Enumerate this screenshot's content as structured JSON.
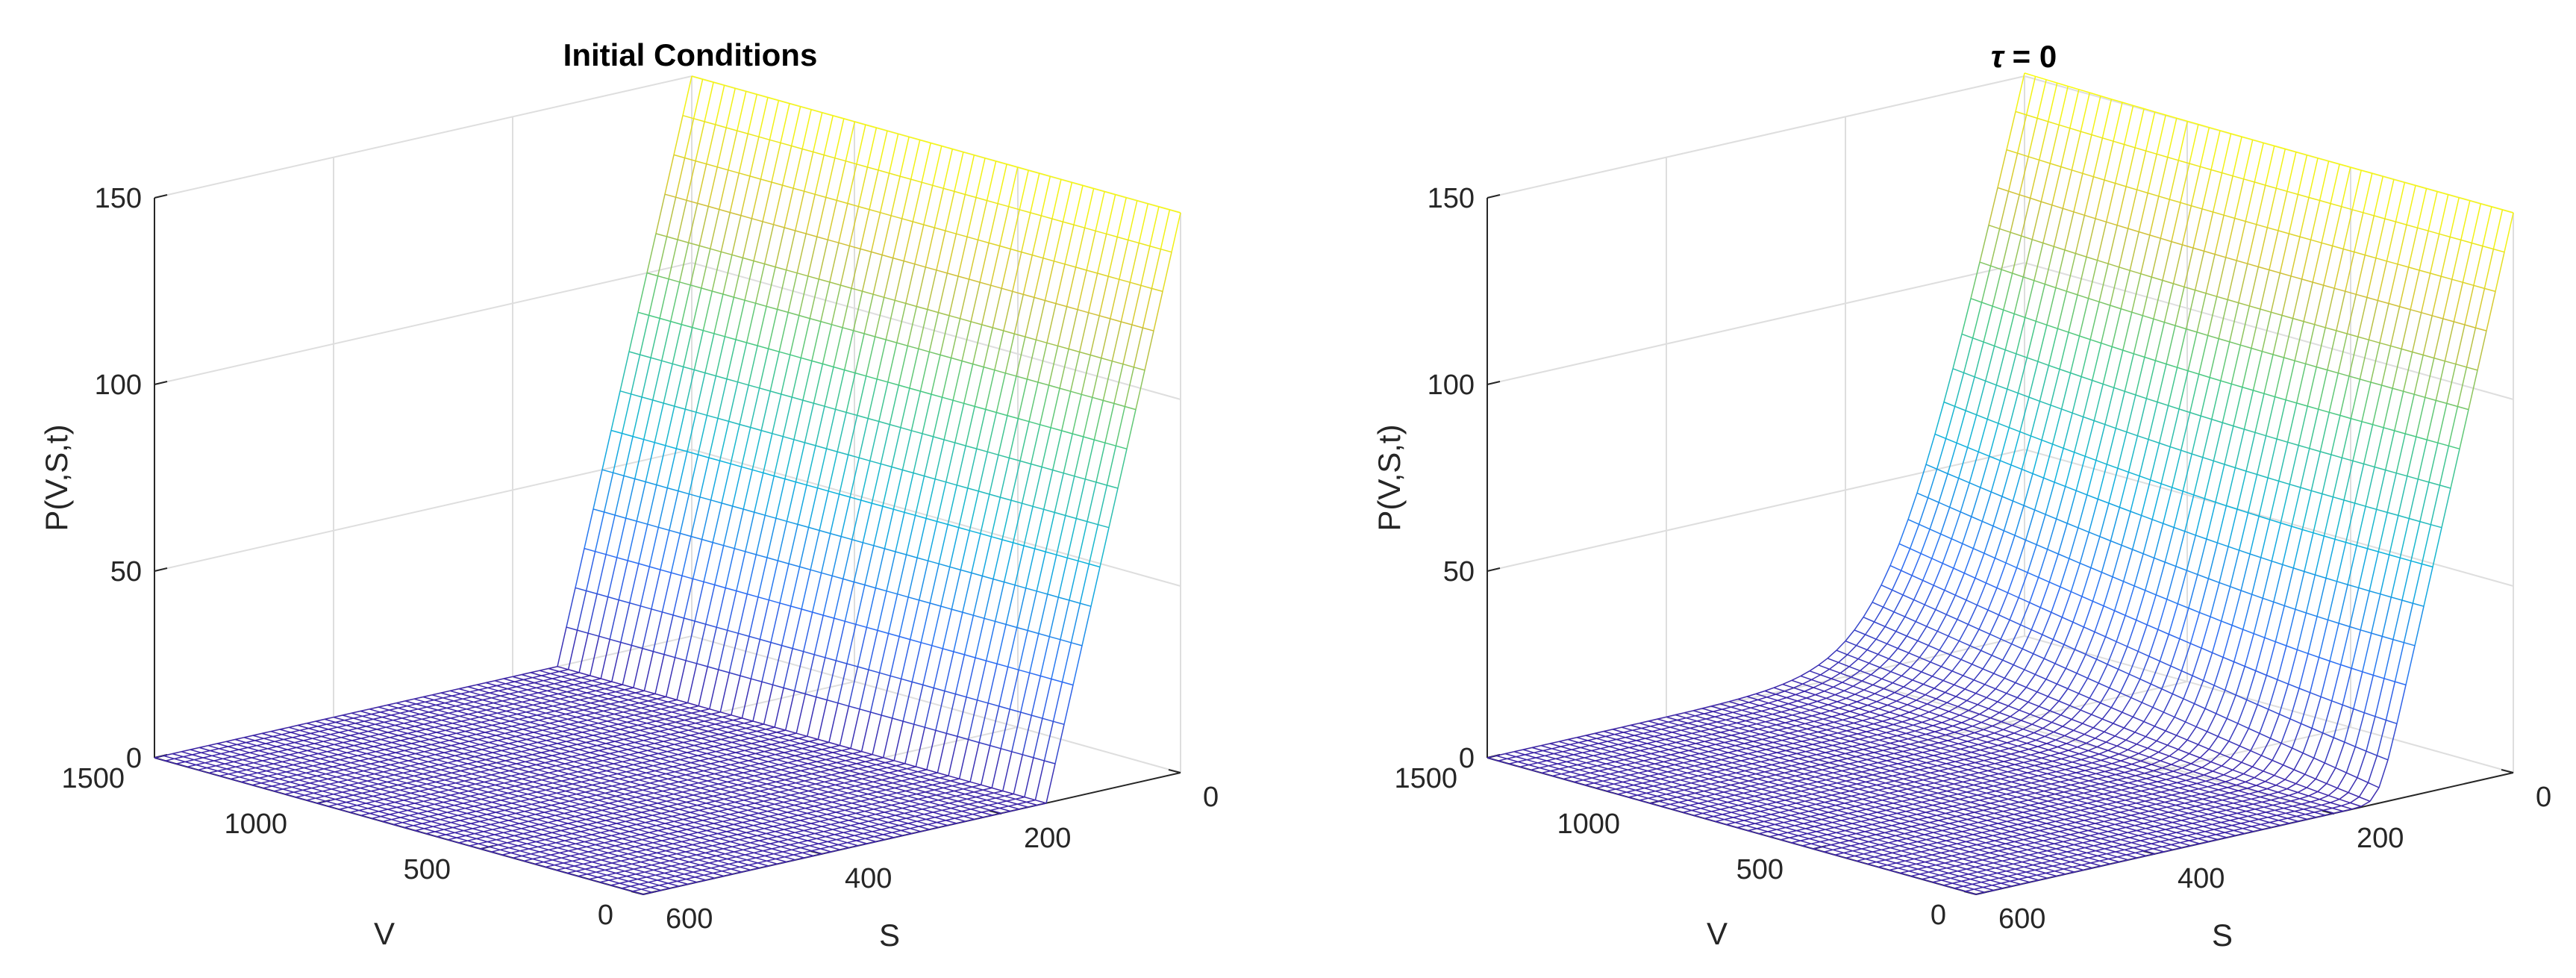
{
  "chart_data": [
    {
      "type": "surface",
      "title": "Initial Conditions",
      "title_symbol": "",
      "xlabel": "S",
      "ylabel": "V",
      "zlabel": "P(V,S,t)",
      "xlim": [
        0,
        600
      ],
      "ylim": [
        0,
        1500
      ],
      "zlim": [
        0,
        150
      ],
      "xticks": [
        "0",
        "200",
        "400",
        "600"
      ],
      "yticks": [
        "0",
        "500",
        "1000",
        "1500"
      ],
      "zticks": [
        "0",
        "50",
        "100",
        "150"
      ],
      "colormap": [
        "#3e26a8",
        "#2d6ff4",
        "#10b3dc",
        "#4bc983",
        "#d0c13a",
        "#f9fb0e"
      ],
      "grid": true,
      "surface": {
        "S": [
          0,
          200,
          400,
          600
        ],
        "V": [
          0,
          500,
          1000,
          1500
        ],
        "smooth_at_strike": false,
        "description_points": [
          {
            "S": 0,
            "V": 0,
            "P": 150
          },
          {
            "S": 0,
            "V": 1500,
            "P": 150
          },
          {
            "S": 150,
            "V": 1500,
            "P": 0
          },
          {
            "S": 600,
            "V": 0,
            "P": 0
          }
        ]
      }
    },
    {
      "type": "surface",
      "title": " = 0",
      "title_symbol": "τ",
      "xlabel": "S",
      "ylabel": "V",
      "zlabel": "P(V,S,t)",
      "xlim": [
        0,
        600
      ],
      "ylim": [
        0,
        1500
      ],
      "zlim": [
        0,
        150
      ],
      "xticks": [
        "0",
        "200",
        "400",
        "600"
      ],
      "yticks": [
        "0",
        "500",
        "1000",
        "1500"
      ],
      "zticks": [
        "0",
        "50",
        "100",
        "150"
      ],
      "colormap": [
        "#3e26a8",
        "#2d6ff4",
        "#10b3dc",
        "#4bc983",
        "#d0c13a",
        "#f9fb0e"
      ],
      "grid": true,
      "surface": {
        "S": [
          0,
          200,
          400,
          600
        ],
        "V": [
          0,
          500,
          1000,
          1500
        ],
        "smooth_at_strike": true,
        "description_points": [
          {
            "S": 0,
            "V": 0,
            "P": 150
          },
          {
            "S": 0,
            "V": 1500,
            "P": 150
          },
          {
            "S": 150,
            "V": 1500,
            "P": 0
          },
          {
            "S": 600,
            "V": 0,
            "P": 0
          }
        ]
      }
    }
  ]
}
